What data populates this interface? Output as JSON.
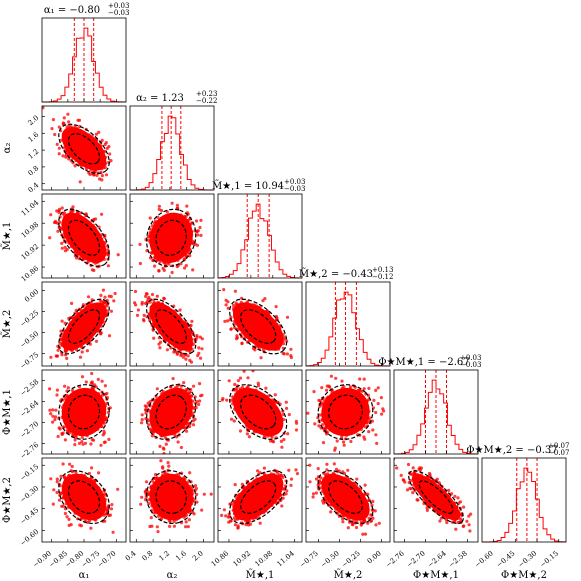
{
  "chart_data": {
    "type": "scatter",
    "color": "#ff0000",
    "contour_color": "#000000",
    "parameters": [
      {
        "label": "α₁",
        "median": -0.8,
        "plus": 0.03,
        "minus": 0.03,
        "title": "α₁ = −0.80",
        "title_plus": "+0.03",
        "title_minus": "−0.03",
        "range": [
          -0.93,
          -0.67
        ],
        "ticks": [
          -0.9,
          -0.85,
          -0.8,
          -0.75,
          -0.7
        ],
        "tick_labels": [
          "−0.90",
          "−0.85",
          "−0.80",
          "−0.75",
          "−0.70"
        ]
      },
      {
        "label": "α₂",
        "median": 1.23,
        "plus": 0.23,
        "minus": 0.22,
        "title": "α₂ = 1.23",
        "title_plus": "+0.23",
        "title_minus": "−0.22",
        "range": [
          0.25,
          2.25
        ],
        "ticks": [
          0.4,
          0.8,
          1.2,
          1.6,
          2.0
        ],
        "tick_labels": [
          "0.4",
          "0.8",
          "1.2",
          "1.6",
          "2.0"
        ]
      },
      {
        "label": "M̃★,1",
        "median": 10.94,
        "plus": 0.03,
        "minus": 0.03,
        "title": "M̃★,1 = 10.94",
        "title_plus": "+0.03",
        "title_minus": "−0.03",
        "range": [
          10.83,
          11.06
        ],
        "ticks": [
          10.86,
          10.92,
          10.98,
          11.04
        ],
        "tick_labels": [
          "10.86",
          "10.92",
          "10.98",
          "11.04"
        ]
      },
      {
        "label": "M̃★,2",
        "median": -0.43,
        "plus": 0.13,
        "minus": 0.12,
        "title": "M̃★,2 = −0.43",
        "title_plus": "+0.13",
        "title_minus": "−0.12",
        "range": [
          -0.9,
          0.1
        ],
        "ticks": [
          -0.75,
          -0.5,
          -0.25,
          0.0
        ],
        "tick_labels": [
          "−0.75",
          "−0.50",
          "−0.25",
          "0.00"
        ]
      },
      {
        "label": "Φ★M★,1",
        "median": -2.67,
        "plus": 0.03,
        "minus": 0.03,
        "title": "Φ★M★,1 = −2.67",
        "title_plus": "+0.03",
        "title_minus": "−0.03",
        "range": [
          -2.79,
          -2.55
        ],
        "ticks": [
          -2.76,
          -2.7,
          -2.64,
          -2.58
        ],
        "tick_labels": [
          "−2.76",
          "−2.70",
          "−2.64",
          "−2.58"
        ]
      },
      {
        "label": "Φ★M★,2",
        "median": -0.37,
        "plus": 0.07,
        "minus": 0.07,
        "title": "Φ★M★,2 = −0.37",
        "title_plus": "+0.07",
        "title_minus": "−0.07",
        "range": [
          -0.68,
          -0.1
        ],
        "ticks": [
          -0.6,
          -0.45,
          -0.3,
          -0.15
        ],
        "tick_labels": [
          "−0.60",
          "−0.45",
          "−0.30",
          "−0.15"
        ]
      }
    ],
    "correlations": [
      [
        1.0,
        -0.55,
        -0.55,
        0.65,
        0.05,
        -0.35
      ],
      [
        -0.55,
        1.0,
        0.1,
        -0.65,
        0.25,
        -0.05
      ],
      [
        -0.55,
        0.1,
        1.0,
        -0.55,
        -0.45,
        0.55
      ],
      [
        0.65,
        -0.65,
        -0.55,
        1.0,
        0.05,
        -0.55
      ],
      [
        0.05,
        0.25,
        -0.45,
        0.05,
        1.0,
        -0.8
      ],
      [
        -0.35,
        -0.05,
        0.55,
        -0.55,
        -0.8,
        1.0
      ]
    ]
  }
}
